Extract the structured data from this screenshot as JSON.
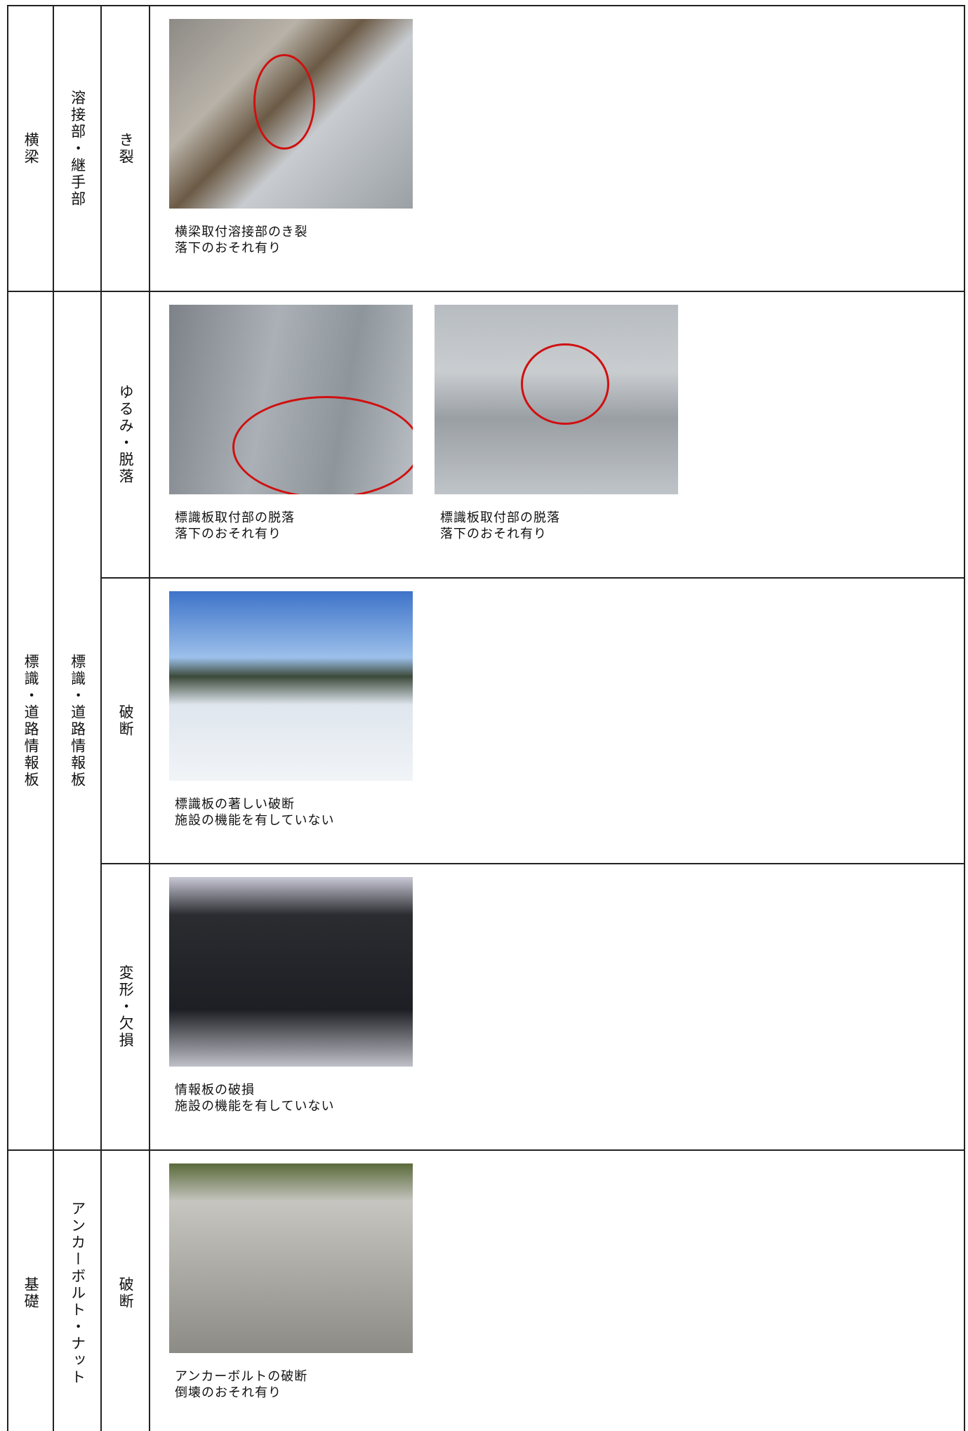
{
  "table": {
    "groups": [
      {
        "part": "横梁",
        "member": "溶接部・継手部",
        "items": [
          {
            "damage": "き裂",
            "photos": [
              {
                "lines": [
                  "横梁取付溶接部のき裂",
                  "落下のおそれ有り"
                ]
              }
            ]
          }
        ]
      },
      {
        "part": "標識・道路情報板",
        "member": "標識・道路情報板",
        "items": [
          {
            "damage": "ゆるみ・脱落",
            "photos": [
              {
                "lines": [
                  "標識板取付部の脱落",
                  "落下のおそれ有り"
                ]
              },
              {
                "lines": [
                  "標識板取付部の脱落",
                  "落下のおそれ有り"
                ]
              }
            ]
          },
          {
            "damage": "破断",
            "photos": [
              {
                "lines": [
                  "標識板の著しい破断",
                  "施設の機能を有していない"
                ]
              }
            ]
          },
          {
            "damage": "変形・欠損",
            "photos": [
              {
                "lines": [
                  "情報板の破損",
                  "施設の機能を有していない"
                ]
              }
            ]
          }
        ]
      },
      {
        "part": "基礎",
        "member": "アンカーボルト・ナット",
        "items": [
          {
            "damage": "破断",
            "photos": [
              {
                "lines": [
                  "アンカーボルトの破断",
                  "倒壊のおそれ有り"
                ]
              }
            ]
          }
        ]
      }
    ]
  }
}
